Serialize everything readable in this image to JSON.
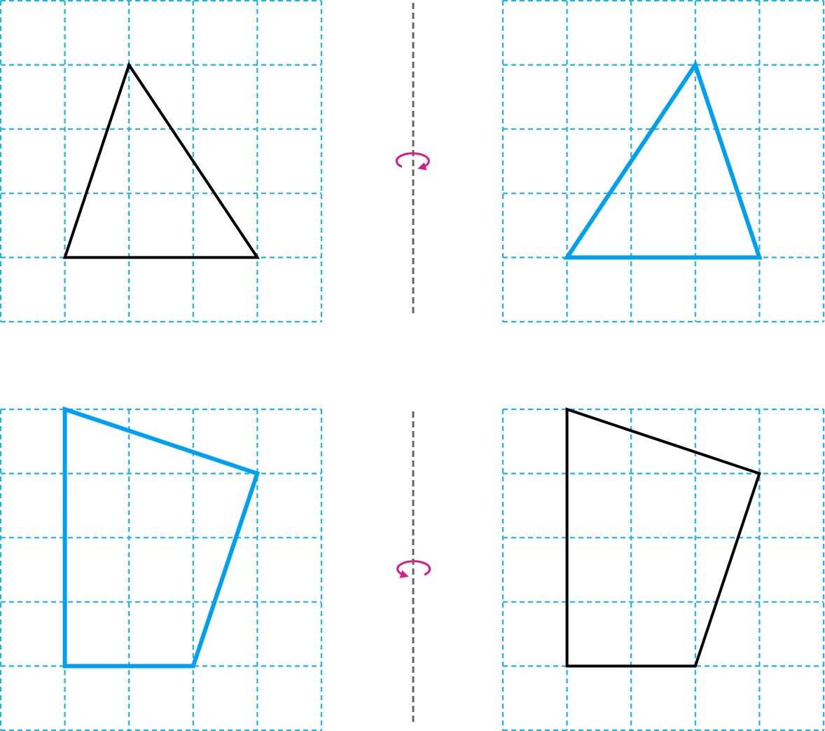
{
  "colors": {
    "grid": "#1ab4e6",
    "original_shape": "#000000",
    "reflected_shape": "#00a0f0",
    "mirror_axis": "#666666",
    "rotation_arrow": "#d81b8c"
  },
  "grid": {
    "columns": 5,
    "rows": 5
  },
  "panels": [
    {
      "name": "top-left-grid",
      "shape_name": "original-triangle",
      "role": "original",
      "vertices": [
        [
          2,
          1
        ],
        [
          1,
          4
        ],
        [
          4,
          4
        ]
      ]
    },
    {
      "name": "top-right-grid",
      "shape_name": "reflected-triangle",
      "role": "reflected",
      "vertices": [
        [
          3,
          1
        ],
        [
          1,
          4
        ],
        [
          4,
          4
        ]
      ]
    },
    {
      "name": "bottom-left-grid",
      "shape_name": "reflected-quadrilateral",
      "role": "reflected",
      "vertices": [
        [
          1,
          0
        ],
        [
          4,
          1
        ],
        [
          3,
          4
        ],
        [
          1,
          4
        ]
      ]
    },
    {
      "name": "bottom-right-grid",
      "shape_name": "original-quadrilateral",
      "role": "original",
      "vertices": [
        [
          1,
          0
        ],
        [
          4,
          1
        ],
        [
          3,
          4
        ],
        [
          1,
          4
        ]
      ]
    }
  ],
  "axes": [
    {
      "name": "top-mirror-axis",
      "arrow_name": "top-rotation-arrow-icon",
      "arrow_direction": "clockwise"
    },
    {
      "name": "bottom-mirror-axis",
      "arrow_name": "bottom-rotation-arrow-icon",
      "arrow_direction": "counterclockwise"
    }
  ]
}
